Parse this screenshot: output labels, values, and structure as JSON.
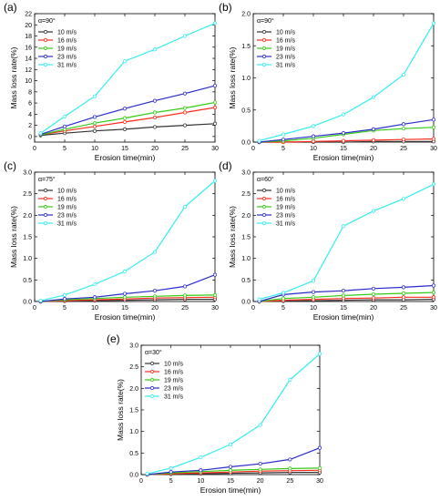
{
  "legend": {
    "labels": [
      "10 m/s",
      "16 m/s",
      "19 m/s",
      "23 m/s",
      "31 m/s"
    ],
    "colors": [
      "#333333",
      "#ff2a1a",
      "#33cc14",
      "#2a2acc",
      "#33eeee"
    ]
  },
  "chart_data": [
    {
      "type": "line",
      "panel_label": "(a)",
      "angle_label": "α=90°",
      "xlabel": "Erosion time(min)",
      "ylabel": "Mass loss rate(%)",
      "xlim": [
        0,
        30
      ],
      "ylim": [
        -1,
        22
      ],
      "xticks": [
        0,
        5,
        10,
        15,
        20,
        25,
        30
      ],
      "yticks": [
        0,
        2,
        4,
        6,
        8,
        10,
        12,
        14,
        16,
        18,
        20,
        22
      ],
      "x": [
        1,
        5,
        10,
        15,
        20,
        25,
        30
      ],
      "series": [
        {
          "name": "10 m/s",
          "values": [
            0.2,
            0.6,
            1.0,
            1.3,
            1.7,
            2.0,
            2.3
          ]
        },
        {
          "name": "16 m/s",
          "values": [
            0.3,
            1.0,
            1.8,
            2.6,
            3.4,
            4.3,
            5.2
          ]
        },
        {
          "name": "19 m/s",
          "values": [
            0.3,
            1.3,
            2.4,
            3.3,
            4.3,
            5.1,
            6.1
          ]
        },
        {
          "name": "23 m/s",
          "values": [
            0.4,
            1.8,
            3.5,
            5.0,
            6.4,
            7.7,
            9.1
          ]
        },
        {
          "name": "31 m/s",
          "values": [
            0.6,
            3.6,
            7.2,
            13.5,
            15.6,
            18.0,
            20.3
          ]
        }
      ]
    },
    {
      "type": "line",
      "panel_label": "(b)",
      "angle_label": "α=90°",
      "xlabel": "Erosion time(min)",
      "ylabel": "Mass loss rate(%)",
      "xlim": [
        0,
        30
      ],
      "ylim": [
        0,
        2.0
      ],
      "xticks": [
        0,
        5,
        10,
        15,
        20,
        25,
        30
      ],
      "yticks": [
        0.0,
        0.5,
        1.0,
        1.5,
        2.0
      ],
      "x": [
        1,
        5,
        10,
        15,
        20,
        25,
        30
      ],
      "series": [
        {
          "name": "10 m/s",
          "values": [
            0.0,
            0.0,
            0.0,
            0.0,
            0.01,
            0.01,
            0.01
          ]
        },
        {
          "name": "16 m/s",
          "values": [
            0.0,
            0.0,
            0.01,
            0.02,
            0.03,
            0.04,
            0.05
          ]
        },
        {
          "name": "19 m/s",
          "values": [
            0.0,
            0.02,
            0.06,
            0.12,
            0.18,
            0.21,
            0.23
          ]
        },
        {
          "name": "23 m/s",
          "values": [
            0.0,
            0.04,
            0.09,
            0.14,
            0.2,
            0.28,
            0.35
          ]
        },
        {
          "name": "31 m/s",
          "values": [
            0.02,
            0.12,
            0.25,
            0.43,
            0.7,
            1.05,
            1.85
          ]
        }
      ]
    },
    {
      "type": "line",
      "panel_label": "(c)",
      "angle_label": "α=75°",
      "xlabel": "Erosion time(min)",
      "ylabel": "Mass loss rate(%)",
      "xlim": [
        0,
        30
      ],
      "ylim": [
        0,
        3.0
      ],
      "xticks": [
        0,
        5,
        10,
        15,
        20,
        25,
        30
      ],
      "yticks": [
        0.0,
        0.5,
        1.0,
        1.5,
        2.0,
        2.5,
        3.0
      ],
      "x": [
        1,
        5,
        10,
        15,
        20,
        25,
        30
      ],
      "series": [
        {
          "name": "10 m/s",
          "values": [
            0.0,
            0.01,
            0.02,
            0.03,
            0.04,
            0.05,
            0.05
          ]
        },
        {
          "name": "16 m/s",
          "values": [
            0.0,
            0.02,
            0.04,
            0.06,
            0.08,
            0.09,
            0.1
          ]
        },
        {
          "name": "19 m/s",
          "values": [
            0.0,
            0.04,
            0.07,
            0.1,
            0.12,
            0.14,
            0.15
          ]
        },
        {
          "name": "23 m/s",
          "values": [
            0.0,
            0.06,
            0.1,
            0.18,
            0.25,
            0.35,
            0.62
          ]
        },
        {
          "name": "31 m/s",
          "values": [
            0.02,
            0.15,
            0.4,
            0.7,
            1.15,
            2.2,
            2.8
          ]
        }
      ]
    },
    {
      "type": "line",
      "panel_label": "(d)",
      "angle_label": "α=60°",
      "xlabel": "Erosion time(min)",
      "ylabel": "Mass loss rate(%)",
      "xlim": [
        0,
        30
      ],
      "ylim": [
        0,
        3.0
      ],
      "xticks": [
        0,
        5,
        10,
        15,
        20,
        25,
        30
      ],
      "yticks": [
        0.0,
        0.5,
        1.0,
        1.5,
        2.0,
        2.5,
        3.0
      ],
      "x": [
        1,
        5,
        10,
        15,
        20,
        25,
        30
      ],
      "series": [
        {
          "name": "10 m/s",
          "values": [
            0.0,
            0.01,
            0.02,
            0.03,
            0.04,
            0.04,
            0.05
          ]
        },
        {
          "name": "16 m/s",
          "values": [
            0.0,
            0.03,
            0.05,
            0.07,
            0.08,
            0.1,
            0.1
          ]
        },
        {
          "name": "19 m/s",
          "values": [
            0.0,
            0.07,
            0.1,
            0.14,
            0.17,
            0.19,
            0.21
          ]
        },
        {
          "name": "23 m/s",
          "values": [
            0.0,
            0.16,
            0.22,
            0.25,
            0.3,
            0.33,
            0.37
          ]
        },
        {
          "name": "31 m/s",
          "values": [
            0.05,
            0.2,
            0.48,
            1.75,
            2.1,
            2.38,
            2.72
          ]
        }
      ]
    },
    {
      "type": "line",
      "panel_label": "(e)",
      "angle_label": "α=30°",
      "xlabel": "Erosion time(min)",
      "ylabel": "Mass loss rate(%)",
      "xlim": [
        0,
        30
      ],
      "ylim": [
        0,
        3.0
      ],
      "xticks": [
        0,
        5,
        10,
        15,
        20,
        25,
        30
      ],
      "yticks": [
        0.0,
        0.5,
        1.0,
        1.5,
        2.0,
        2.5,
        3.0
      ],
      "x": [
        1,
        5,
        10,
        15,
        20,
        25,
        30
      ],
      "series": [
        {
          "name": "10 m/s",
          "values": [
            0.0,
            0.01,
            0.02,
            0.03,
            0.04,
            0.05,
            0.05
          ]
        },
        {
          "name": "16 m/s",
          "values": [
            0.0,
            0.02,
            0.04,
            0.06,
            0.08,
            0.09,
            0.1
          ]
        },
        {
          "name": "19 m/s",
          "values": [
            0.0,
            0.04,
            0.07,
            0.1,
            0.12,
            0.14,
            0.15
          ]
        },
        {
          "name": "23 m/s",
          "values": [
            0.0,
            0.06,
            0.1,
            0.18,
            0.25,
            0.35,
            0.62
          ]
        },
        {
          "name": "31 m/s",
          "values": [
            0.02,
            0.15,
            0.4,
            0.7,
            1.15,
            2.2,
            2.8
          ]
        }
      ]
    }
  ]
}
